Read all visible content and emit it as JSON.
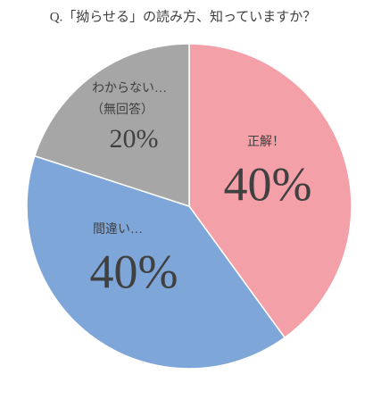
{
  "chart_data": {
    "type": "pie",
    "title": "Q.「拗らせる」の読み方、知っていますか？",
    "categories": [
      "正解！",
      "間違い…",
      "わからない…\n（無回答）"
    ],
    "values": [
      40,
      40,
      20
    ],
    "value_labels": [
      "40%",
      "40%",
      "20%"
    ],
    "colors": [
      "#f4a0a8",
      "#7fa6d9",
      "#a6a6a6"
    ]
  }
}
